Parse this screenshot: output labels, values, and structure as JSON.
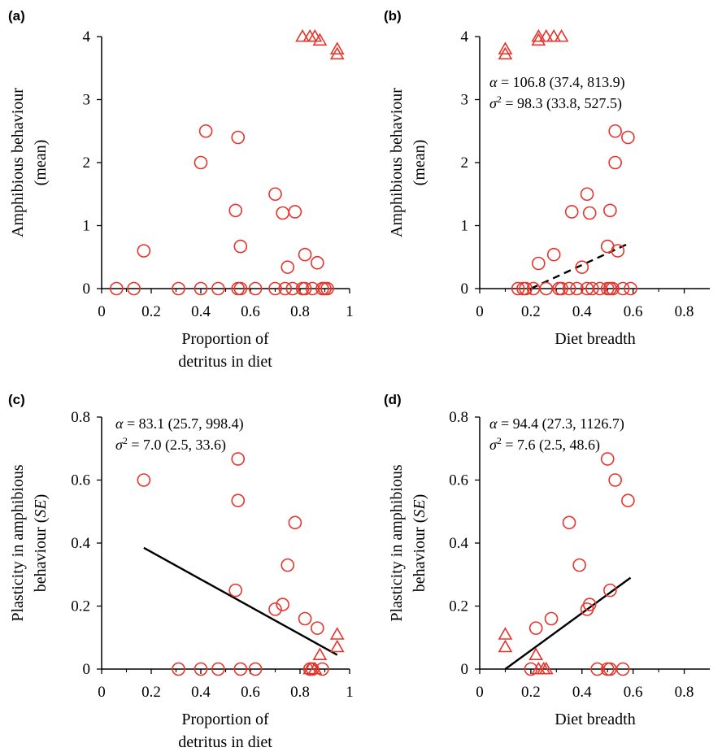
{
  "colors": {
    "points": "#e8332a",
    "axis": "#000000",
    "fit": "#000000"
  },
  "chart_data": [
    {
      "panel": "(a)",
      "type": "scatter",
      "xlabel": "Proportion of\ndetritus in diet",
      "ylabel": "Amphibious behaviour\n(mean)",
      "xlim": [
        0,
        1
      ],
      "ylim": [
        0,
        4
      ],
      "xticks": [
        0,
        0.2,
        0.4,
        0.6,
        0.8,
        1
      ],
      "xticklabels": [
        "0",
        "0.2",
        "0.4",
        "0.6",
        "0.8",
        "1"
      ],
      "yticks": [
        0,
        1,
        2,
        3,
        4
      ],
      "yticklabels": [
        "0",
        "1",
        "2",
        "3",
        "4"
      ],
      "annotations": [],
      "fit": null,
      "fit_style": "none",
      "series": [
        {
          "marker": "circle",
          "points": [
            [
              0.06,
              0
            ],
            [
              0.13,
              0
            ],
            [
              0.17,
              0.6
            ],
            [
              0.31,
              0
            ],
            [
              0.4,
              2.0
            ],
            [
              0.4,
              0
            ],
            [
              0.42,
              2.5
            ],
            [
              0.47,
              0
            ],
            [
              0.54,
              1.24
            ],
            [
              0.55,
              2.4
            ],
            [
              0.55,
              0
            ],
            [
              0.56,
              0.67
            ],
            [
              0.56,
              0
            ],
            [
              0.62,
              0
            ],
            [
              0.7,
              1.5
            ],
            [
              0.7,
              0
            ],
            [
              0.73,
              1.2
            ],
            [
              0.74,
              0
            ],
            [
              0.75,
              0.34
            ],
            [
              0.77,
              0
            ],
            [
              0.78,
              1.22
            ],
            [
              0.81,
              0
            ],
            [
              0.82,
              0.54
            ],
            [
              0.82,
              0
            ],
            [
              0.85,
              0
            ],
            [
              0.87,
              0.41
            ],
            [
              0.89,
              0
            ],
            [
              0.9,
              0
            ],
            [
              0.91,
              0
            ]
          ]
        },
        {
          "marker": "triangle",
          "points": [
            [
              0.81,
              4.0
            ],
            [
              0.84,
              4.0
            ],
            [
              0.86,
              4.0
            ],
            [
              0.88,
              3.94
            ],
            [
              0.95,
              3.72
            ],
            [
              0.95,
              3.8
            ]
          ]
        }
      ]
    },
    {
      "panel": "(b)",
      "type": "scatter",
      "xlabel": "Diet breadth",
      "ylabel": "Amphibious behaviour\n(mean)",
      "xlim": [
        0,
        0.9
      ],
      "ylim": [
        0,
        4
      ],
      "xticks": [
        0,
        0.2,
        0.4,
        0.6,
        0.8
      ],
      "xticklabels": [
        "0",
        "0.2",
        "0.4",
        "0.6",
        "0.8"
      ],
      "yticks": [
        0,
        1,
        2,
        3,
        4
      ],
      "yticklabels": [
        "0",
        "1",
        "2",
        "3",
        "4"
      ],
      "annotations": [
        {
          "sym": "α",
          "sup": "",
          "rest": " = 106.8 (37.4, 813.9)"
        },
        {
          "sym": "σ",
          "sup": "2",
          "rest": " = 98.3 (33.8, 527.5)"
        }
      ],
      "fit": [
        [
          0.2,
          0
        ],
        [
          0.59,
          0.73
        ]
      ],
      "fit_style": "dashed",
      "series": [
        {
          "marker": "circle",
          "points": [
            [
              0.15,
              0
            ],
            [
              0.17,
              0
            ],
            [
              0.18,
              0
            ],
            [
              0.21,
              0
            ],
            [
              0.23,
              0.4
            ],
            [
              0.26,
              0
            ],
            [
              0.29,
              0.54
            ],
            [
              0.31,
              0
            ],
            [
              0.32,
              0
            ],
            [
              0.35,
              0
            ],
            [
              0.36,
              1.22
            ],
            [
              0.38,
              0
            ],
            [
              0.4,
              0.34
            ],
            [
              0.42,
              1.5
            ],
            [
              0.42,
              0
            ],
            [
              0.43,
              1.2
            ],
            [
              0.44,
              0
            ],
            [
              0.47,
              0
            ],
            [
              0.5,
              0.67
            ],
            [
              0.5,
              0
            ],
            [
              0.51,
              0
            ],
            [
              0.51,
              1.24
            ],
            [
              0.52,
              0
            ],
            [
              0.53,
              2.5
            ],
            [
              0.53,
              2.0
            ],
            [
              0.54,
              0.6
            ],
            [
              0.56,
              0
            ],
            [
              0.58,
              2.4
            ],
            [
              0.59,
              0
            ]
          ]
        },
        {
          "marker": "triangle",
          "points": [
            [
              0.1,
              3.72
            ],
            [
              0.1,
              3.8
            ],
            [
              0.23,
              3.94
            ],
            [
              0.23,
              4.0
            ],
            [
              0.26,
              4.0
            ],
            [
              0.29,
              4.0
            ],
            [
              0.32,
              4.0
            ]
          ]
        }
      ]
    },
    {
      "panel": "(c)",
      "type": "scatter",
      "xlabel": "Proportion of\ndetritus in diet",
      "ylabel": "Plasticity in amphibious\nbehaviour (SE)",
      "xlim": [
        0,
        1
      ],
      "ylim": [
        0,
        0.8
      ],
      "xticks": [
        0,
        0.2,
        0.4,
        0.6,
        0.8,
        1
      ],
      "xticklabels": [
        "0",
        "0.2",
        "0.4",
        "0.6",
        "0.8",
        "1"
      ],
      "yticks": [
        0,
        0.2,
        0.4,
        0.6,
        0.8
      ],
      "yticklabels": [
        "0",
        "0.2",
        "0.4",
        "0.6",
        "0.8"
      ],
      "annotations": [
        {
          "sym": "α",
          "sup": "",
          "rest": " = 83.1 (25.7, 998.4)"
        },
        {
          "sym": "σ",
          "sup": "2",
          "rest": " = 7.0 (2.5, 33.6)"
        }
      ],
      "fit": [
        [
          0.17,
          0.385
        ],
        [
          0.95,
          0.045
        ]
      ],
      "fit_style": "solid",
      "series": [
        {
          "marker": "circle",
          "points": [
            [
              0.17,
              0.6
            ],
            [
              0.31,
              0
            ],
            [
              0.4,
              0
            ],
            [
              0.47,
              0
            ],
            [
              0.54,
              0.25
            ],
            [
              0.55,
              0.535
            ],
            [
              0.55,
              0.667
            ],
            [
              0.56,
              0
            ],
            [
              0.62,
              0
            ],
            [
              0.7,
              0.19
            ],
            [
              0.73,
              0.205
            ],
            [
              0.75,
              0.33
            ],
            [
              0.78,
              0.465
            ],
            [
              0.82,
              0.16
            ],
            [
              0.84,
              0
            ],
            [
              0.85,
              0
            ],
            [
              0.87,
              0.13
            ],
            [
              0.89,
              0
            ]
          ]
        },
        {
          "marker": "triangle",
          "points": [
            [
              0.84,
              0
            ],
            [
              0.86,
              0
            ],
            [
              0.88,
              0.045
            ],
            [
              0.95,
              0.11
            ],
            [
              0.95,
              0.07
            ]
          ]
        }
      ]
    },
    {
      "panel": "(d)",
      "type": "scatter",
      "xlabel": "Diet breadth",
      "ylabel": "Plasticity in amphibious\nbehaviour (SE)",
      "xlim": [
        0,
        0.9
      ],
      "ylim": [
        0,
        0.8
      ],
      "xticks": [
        0,
        0.2,
        0.4,
        0.6,
        0.8
      ],
      "xticklabels": [
        "0",
        "0.2",
        "0.4",
        "0.6",
        "0.8"
      ],
      "yticks": [
        0,
        0.2,
        0.4,
        0.6,
        0.8
      ],
      "yticklabels": [
        "0",
        "0.2",
        "0.4",
        "0.6",
        "0.8"
      ],
      "annotations": [
        {
          "sym": "α",
          "sup": "",
          "rest": " = 94.4 (27.3, 1126.7)"
        },
        {
          "sym": "σ",
          "sup": "2",
          "rest": " = 7.6 (2.5, 48.6)"
        }
      ],
      "fit": [
        [
          0.1,
          0
        ],
        [
          0.59,
          0.29
        ]
      ],
      "fit_style": "solid",
      "series": [
        {
          "marker": "circle",
          "points": [
            [
              0.2,
              0
            ],
            [
              0.22,
              0.13
            ],
            [
              0.28,
              0.16
            ],
            [
              0.35,
              0.465
            ],
            [
              0.39,
              0.33
            ],
            [
              0.42,
              0.19
            ],
            [
              0.43,
              0.205
            ],
            [
              0.46,
              0
            ],
            [
              0.5,
              0.667
            ],
            [
              0.5,
              0
            ],
            [
              0.51,
              0
            ],
            [
              0.51,
              0.25
            ],
            [
              0.53,
              0.6
            ],
            [
              0.56,
              0
            ],
            [
              0.58,
              0.535
            ]
          ]
        },
        {
          "marker": "triangle",
          "points": [
            [
              0.1,
              0.11
            ],
            [
              0.1,
              0.07
            ],
            [
              0.22,
              0.045
            ],
            [
              0.23,
              0
            ],
            [
              0.25,
              0
            ],
            [
              0.26,
              0
            ]
          ]
        }
      ]
    }
  ]
}
